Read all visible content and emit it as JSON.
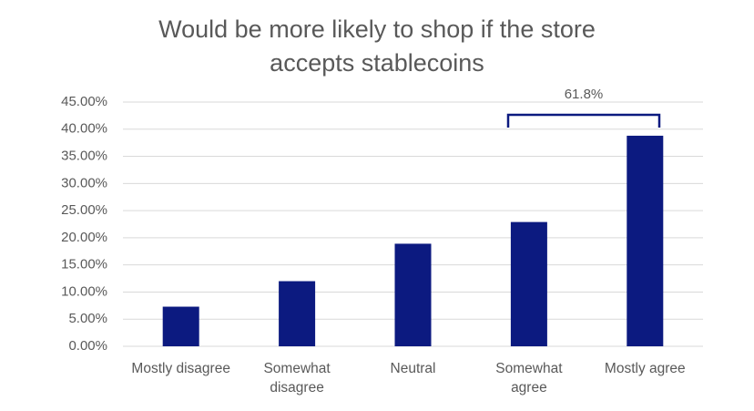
{
  "chart_data": {
    "type": "bar",
    "title": "Would be more likely to shop if the store accepts stablecoins",
    "categories": [
      "Mostly disagree",
      "Somewhat disagree",
      "Neutral",
      "Somewhat agree",
      "Mostly agree"
    ],
    "values": [
      7.3,
      12.0,
      18.9,
      22.9,
      38.8
    ],
    "color": "#0c1a80",
    "ylim": [
      0,
      45
    ],
    "yticks": [
      {
        "value": 0,
        "label": "0.00%"
      },
      {
        "value": 5,
        "label": "5.00%"
      },
      {
        "value": 10,
        "label": "10.00%"
      },
      {
        "value": 15,
        "label": "15.00%"
      },
      {
        "value": 20,
        "label": "20.00%"
      },
      {
        "value": 25,
        "label": "25.00%"
      },
      {
        "value": 30,
        "label": "30.00%"
      },
      {
        "value": 35,
        "label": "35.00%"
      },
      {
        "value": 40,
        "label": "40.00%"
      },
      {
        "value": 45,
        "label": "45.00%"
      }
    ],
    "grid": true,
    "annotation": "61.8%"
  }
}
